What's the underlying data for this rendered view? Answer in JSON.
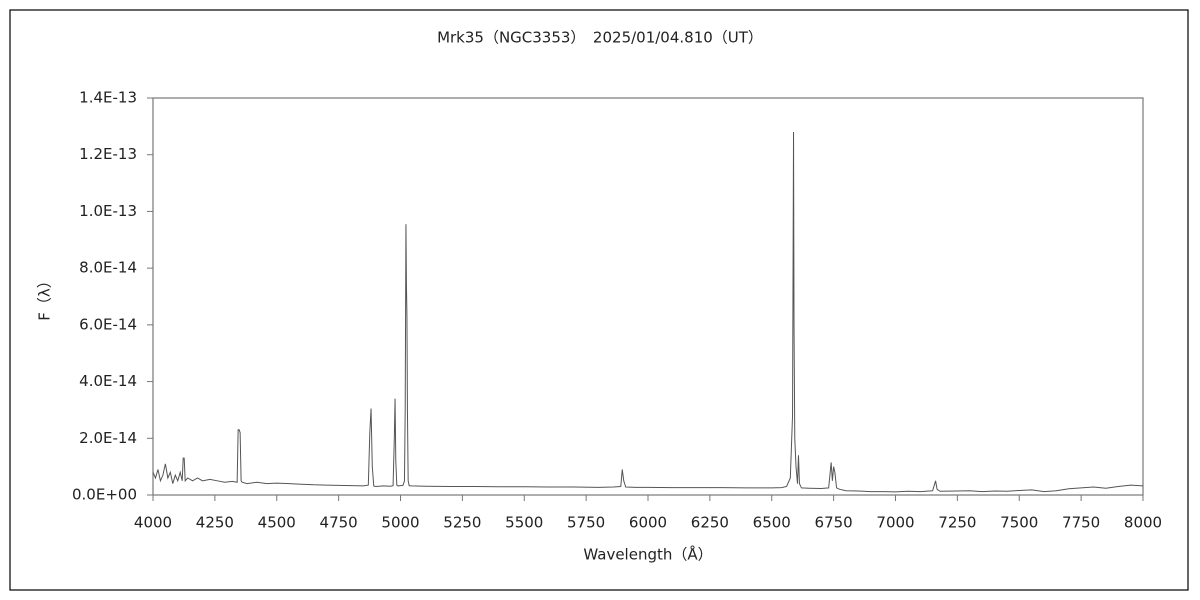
{
  "chart_data": {
    "type": "line",
    "title": "Mrk35（NGC3353）　2025/01/04.810（UT）",
    "x_label": "Wavelength（Å）",
    "y_label": "F（λ）",
    "color": "#555555",
    "xlim": [
      4000,
      8000
    ],
    "xticks": [
      4000,
      4250,
      4500,
      4750,
      5000,
      5250,
      5500,
      5750,
      6000,
      6250,
      6500,
      6750,
      7000,
      7250,
      7500,
      7750,
      8000
    ],
    "ylim": [
      0,
      1.4e-13
    ],
    "yticks": [
      {
        "value": 0,
        "label": "0.0E+00"
      },
      {
        "value": 2e-14,
        "label": "2.0E-14"
      },
      {
        "value": 4e-14,
        "label": "4.0E-14"
      },
      {
        "value": 6e-14,
        "label": "6.0E-14"
      },
      {
        "value": 8e-14,
        "label": "8.0E-14"
      },
      {
        "value": 1e-13,
        "label": "1.0E-13"
      },
      {
        "value": 1.2e-13,
        "label": "1.2E-13"
      },
      {
        "value": 1.4e-13,
        "label": "1.4E-13"
      }
    ],
    "x": [
      4000,
      4010,
      4020,
      4030,
      4040,
      4050,
      4060,
      4070,
      4080,
      4090,
      4100,
      4110,
      4118,
      4122,
      4126,
      4130,
      4140,
      4160,
      4180,
      4200,
      4230,
      4260,
      4290,
      4320,
      4340,
      4344,
      4348,
      4352,
      4356,
      4360,
      4380,
      4420,
      4460,
      4500,
      4550,
      4600,
      4650,
      4700,
      4750,
      4800,
      4850,
      4870,
      4876,
      4881,
      4886,
      4892,
      4900,
      4930,
      4960,
      4970,
      4975,
      4978,
      4981,
      4985,
      4990,
      5000,
      5010,
      5016,
      5019,
      5022,
      5024,
      5026,
      5028,
      5031,
      5035,
      5045,
      5100,
      5200,
      5300,
      5400,
      5500,
      5600,
      5700,
      5800,
      5860,
      5890,
      5896,
      5902,
      5910,
      5950,
      6000,
      6100,
      6200,
      6300,
      6400,
      6500,
      6540,
      6560,
      6575,
      6584,
      6588,
      6590,
      6593,
      6598,
      6604,
      6608,
      6612,
      6620,
      6650,
      6700,
      6730,
      6740,
      6745,
      6750,
      6755,
      6762,
      6775,
      6800,
      6850,
      6900,
      6950,
      7000,
      7050,
      7100,
      7150,
      7162,
      7168,
      7180,
      7250,
      7300,
      7350,
      7400,
      7450,
      7500,
      7550,
      7600,
      7650,
      7700,
      7750,
      7800,
      7850,
      7900,
      7950,
      8000
    ],
    "values": [
      8e-15,
      6e-15,
      9e-15,
      5e-15,
      7e-15,
      1.1e-14,
      6e-15,
      8e-15,
      4e-15,
      7e-15,
      5e-15,
      8e-15,
      5e-15,
      1.3e-14,
      1.3e-14,
      5e-15,
      6e-15,
      5e-15,
      6e-15,
      5e-15,
      5.5e-15,
      5e-15,
      4.5e-15,
      4.8e-15,
      4.5e-15,
      2.3e-14,
      2.3e-14,
      2.2e-14,
      5e-15,
      4.5e-15,
      4e-15,
      4.5e-15,
      4e-15,
      4.2e-15,
      4e-15,
      3.8e-15,
      3.6e-15,
      3.5e-15,
      3.4e-15,
      3.3e-15,
      3.2e-15,
      3.5e-15,
      2.2e-14,
      3.05e-14,
      1e-14,
      3.2e-15,
      3e-15,
      3.2e-15,
      3.1e-15,
      3.3e-15,
      2e-14,
      3.4e-14,
      1.2e-14,
      3.5e-15,
      3.2e-15,
      3.3e-15,
      3.4e-15,
      5e-15,
      3e-14,
      9.55e-14,
      7.4e-14,
      6.3e-14,
      3e-14,
      5e-15,
      3.3e-15,
      3.2e-15,
      3.1e-15,
      3e-15,
      3e-15,
      2.9e-15,
      2.9e-15,
      2.8e-15,
      2.8e-15,
      2.7e-15,
      2.8e-15,
      3e-15,
      9e-15,
      5e-15,
      2.8e-15,
      2.7e-15,
      2.7e-15,
      2.6e-15,
      2.6e-15,
      2.6e-15,
      2.5e-15,
      2.5e-15,
      2.6e-15,
      3e-15,
      6e-15,
      2.8e-14,
      1.28e-13,
      6e-14,
      2e-14,
      1e-14,
      4e-15,
      1.4e-14,
      4e-15,
      2.5e-15,
      2.4e-15,
      2.3e-15,
      2.5e-15,
      1.15e-14,
      5e-15,
      1e-14,
      8e-15,
      2.5e-15,
      2e-15,
      1.5e-15,
      1.4e-15,
      1.2e-15,
      1.2e-15,
      1.1e-15,
      1.3e-15,
      1.2e-15,
      1.5e-15,
      5e-15,
      2e-15,
      1.3e-15,
      1.4e-15,
      1.5e-15,
      1.2e-15,
      1.4e-15,
      1.3e-15,
      1.6e-15,
      1.8e-15,
      1.2e-15,
      1.5e-15,
      2.2e-15,
      2.5e-15,
      2.8e-15,
      2.4e-15,
      3e-15,
      3.5e-15,
      3.2e-15
    ]
  }
}
